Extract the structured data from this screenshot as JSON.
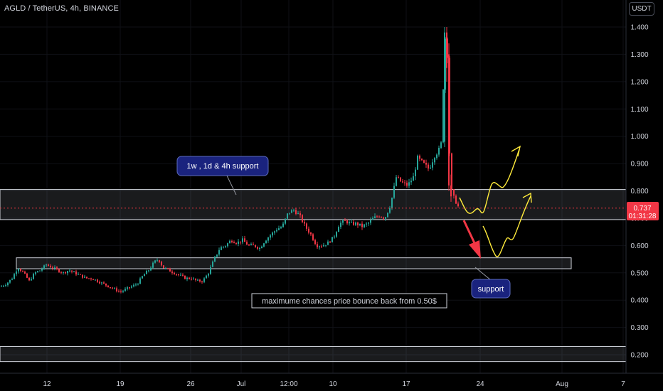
{
  "header": {
    "symbol_title": "AGLD / TetherUS, 4h, BINANCE",
    "currency_button": "USDT"
  },
  "price_tag": {
    "price": "0.737",
    "countdown": "01:31:28",
    "color": "#f23645"
  },
  "colors": {
    "background": "#000000",
    "up": "#26a69a",
    "down": "#f23645",
    "text": "#d1d4dc",
    "annotation_fill": "#1a237e",
    "forecast_arrow": "#ffeb3b"
  },
  "annotations": {
    "support_callout_top": "1w , 1d  & 4h support",
    "support_callout_bottom": "support",
    "note_box": "maximume chances price bounce back from 0.50$"
  },
  "chart_data": {
    "type": "candlestick",
    "symbol": "AGLD / TetherUS",
    "interval": "4h",
    "exchange": "BINANCE",
    "y_axis": {
      "ticks": [
        "0.200",
        "0.300",
        "0.400",
        "0.500",
        "0.600",
        "0.700",
        "0.800",
        "0.900",
        "1.000",
        "1.100",
        "1.200",
        "1.300",
        "1.400"
      ],
      "range": [
        0.18,
        1.42
      ]
    },
    "x_axis": {
      "ticks": [
        "12",
        "19",
        "26",
        "Jul",
        "12:00",
        "10",
        "17",
        "24",
        "Aug",
        "7"
      ]
    },
    "last_price": 0.737,
    "price_path": [
      [
        0,
        0.45
      ],
      [
        8,
        0.46
      ],
      [
        16,
        0.48
      ],
      [
        24,
        0.52
      ],
      [
        32,
        0.5
      ],
      [
        40,
        0.47
      ],
      [
        48,
        0.5
      ],
      [
        56,
        0.51
      ],
      [
        64,
        0.53
      ],
      [
        72,
        0.52
      ],
      [
        80,
        0.51
      ],
      [
        88,
        0.5
      ],
      [
        96,
        0.51
      ],
      [
        104,
        0.5
      ],
      [
        112,
        0.49
      ],
      [
        120,
        0.48
      ],
      [
        128,
        0.48
      ],
      [
        136,
        0.47
      ],
      [
        144,
        0.46
      ],
      [
        152,
        0.45
      ],
      [
        160,
        0.44
      ],
      [
        168,
        0.43
      ],
      [
        176,
        0.44
      ],
      [
        184,
        0.45
      ],
      [
        192,
        0.46
      ],
      [
        200,
        0.49
      ],
      [
        208,
        0.51
      ],
      [
        216,
        0.54
      ],
      [
        222,
        0.55
      ],
      [
        228,
        0.52
      ],
      [
        236,
        0.51
      ],
      [
        244,
        0.5
      ],
      [
        252,
        0.49
      ],
      [
        260,
        0.48
      ],
      [
        268,
        0.48
      ],
      [
        276,
        0.47
      ],
      [
        284,
        0.47
      ],
      [
        292,
        0.5
      ],
      [
        300,
        0.55
      ],
      [
        308,
        0.59
      ],
      [
        316,
        0.6
      ],
      [
        324,
        0.62
      ],
      [
        332,
        0.61
      ],
      [
        340,
        0.62
      ],
      [
        348,
        0.6
      ],
      [
        356,
        0.6
      ],
      [
        364,
        0.59
      ],
      [
        372,
        0.62
      ],
      [
        380,
        0.64
      ],
      [
        388,
        0.66
      ],
      [
        396,
        0.67
      ],
      [
        404,
        0.72
      ],
      [
        412,
        0.73
      ],
      [
        420,
        0.71
      ],
      [
        428,
        0.67
      ],
      [
        436,
        0.64
      ],
      [
        444,
        0.6
      ],
      [
        452,
        0.6
      ],
      [
        460,
        0.61
      ],
      [
        468,
        0.63
      ],
      [
        476,
        0.68
      ],
      [
        484,
        0.69
      ],
      [
        492,
        0.68
      ],
      [
        500,
        0.68
      ],
      [
        508,
        0.67
      ],
      [
        516,
        0.68
      ],
      [
        524,
        0.7
      ],
      [
        532,
        0.71
      ],
      [
        540,
        0.7
      ],
      [
        548,
        0.75
      ],
      [
        556,
        0.85
      ],
      [
        564,
        0.83
      ],
      [
        572,
        0.82
      ],
      [
        580,
        0.85
      ],
      [
        586,
        0.92
      ],
      [
        594,
        0.9
      ],
      [
        602,
        0.88
      ],
      [
        610,
        0.93
      ],
      [
        616,
        0.95
      ],
      [
        620,
        0.98
      ],
      [
        624,
        1.38
      ],
      [
        628,
        1.3
      ],
      [
        632,
        0.82
      ],
      [
        636,
        0.78
      ],
      [
        640,
        0.76
      ],
      [
        644,
        0.737
      ]
    ],
    "support_zones": [
      {
        "low": 0.695,
        "high": 0.805
      },
      {
        "low": 0.515,
        "high": 0.555
      },
      {
        "low": 0.175,
        "high": 0.23
      }
    ]
  }
}
